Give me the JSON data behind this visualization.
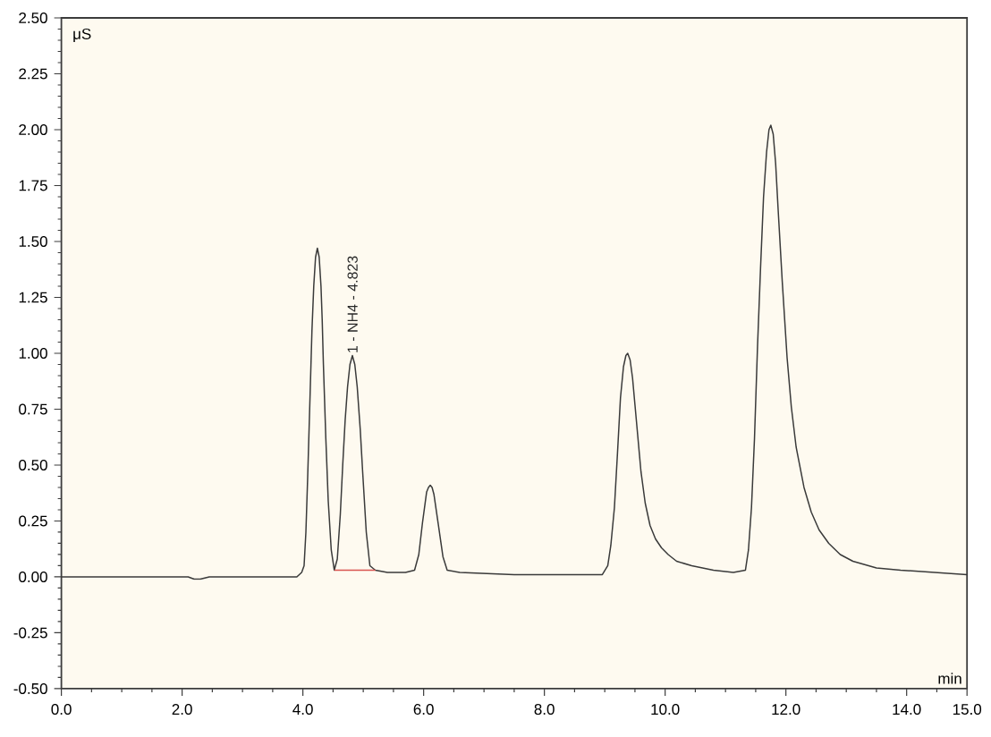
{
  "chart_data": {
    "type": "line",
    "xlabel": "min",
    "ylabel": "μS",
    "xlim": [
      0,
      15
    ],
    "ylim": [
      -0.5,
      2.5
    ],
    "xticks": [
      {
        "value": 0,
        "label": "0.0"
      },
      {
        "value": 0.5,
        "label": null
      },
      {
        "value": 1,
        "label": null
      },
      {
        "value": 1.5,
        "label": null
      },
      {
        "value": 2,
        "label": "2.0"
      },
      {
        "value": 2.5,
        "label": null
      },
      {
        "value": 3,
        "label": null
      },
      {
        "value": 3.5,
        "label": null
      },
      {
        "value": 4,
        "label": "4.0"
      },
      {
        "value": 4.5,
        "label": null
      },
      {
        "value": 5,
        "label": null
      },
      {
        "value": 5.5,
        "label": null
      },
      {
        "value": 6,
        "label": "6.0"
      },
      {
        "value": 6.5,
        "label": null
      },
      {
        "value": 7,
        "label": null
      },
      {
        "value": 7.5,
        "label": null
      },
      {
        "value": 8,
        "label": "8.0"
      },
      {
        "value": 8.5,
        "label": null
      },
      {
        "value": 9,
        "label": null
      },
      {
        "value": 9.5,
        "label": null
      },
      {
        "value": 10,
        "label": "10.0"
      },
      {
        "value": 10.5,
        "label": null
      },
      {
        "value": 11,
        "label": null
      },
      {
        "value": 11.5,
        "label": null
      },
      {
        "value": 12,
        "label": "12.0"
      },
      {
        "value": 12.5,
        "label": null
      },
      {
        "value": 13,
        "label": null
      },
      {
        "value": 13.5,
        "label": null
      },
      {
        "value": 14,
        "label": "14.0"
      },
      {
        "value": 14.5,
        "label": null
      },
      {
        "value": 15,
        "label": "15.0"
      }
    ],
    "yticks": [
      {
        "value": -0.5,
        "label": "-0.50"
      },
      {
        "value": -0.45,
        "label": null
      },
      {
        "value": -0.4,
        "label": null
      },
      {
        "value": -0.35,
        "label": null
      },
      {
        "value": -0.3,
        "label": null
      },
      {
        "value": -0.25,
        "label": "-0.25"
      },
      {
        "value": -0.2,
        "label": null
      },
      {
        "value": -0.15,
        "label": null
      },
      {
        "value": -0.1,
        "label": null
      },
      {
        "value": -0.05,
        "label": null
      },
      {
        "value": 0,
        "label": "0.00"
      },
      {
        "value": 0.05,
        "label": null
      },
      {
        "value": 0.1,
        "label": null
      },
      {
        "value": 0.15,
        "label": null
      },
      {
        "value": 0.2,
        "label": null
      },
      {
        "value": 0.25,
        "label": "0.25"
      },
      {
        "value": 0.3,
        "label": null
      },
      {
        "value": 0.35,
        "label": null
      },
      {
        "value": 0.4,
        "label": null
      },
      {
        "value": 0.45,
        "label": null
      },
      {
        "value": 0.5,
        "label": "0.50"
      },
      {
        "value": 0.55,
        "label": null
      },
      {
        "value": 0.6,
        "label": null
      },
      {
        "value": 0.65,
        "label": null
      },
      {
        "value": 0.7,
        "label": null
      },
      {
        "value": 0.75,
        "label": "0.75"
      },
      {
        "value": 0.8,
        "label": null
      },
      {
        "value": 0.85,
        "label": null
      },
      {
        "value": 0.9,
        "label": null
      },
      {
        "value": 0.95,
        "label": null
      },
      {
        "value": 1,
        "label": "1.00"
      },
      {
        "value": 1.05,
        "label": null
      },
      {
        "value": 1.1,
        "label": null
      },
      {
        "value": 1.15,
        "label": null
      },
      {
        "value": 1.2,
        "label": null
      },
      {
        "value": 1.25,
        "label": "1.25"
      },
      {
        "value": 1.3,
        "label": null
      },
      {
        "value": 1.35,
        "label": null
      },
      {
        "value": 1.4,
        "label": null
      },
      {
        "value": 1.45,
        "label": null
      },
      {
        "value": 1.5,
        "label": "1.50"
      },
      {
        "value": 1.55,
        "label": null
      },
      {
        "value": 1.6,
        "label": null
      },
      {
        "value": 1.65,
        "label": null
      },
      {
        "value": 1.7,
        "label": null
      },
      {
        "value": 1.75,
        "label": "1.75"
      },
      {
        "value": 1.8,
        "label": null
      },
      {
        "value": 1.85,
        "label": null
      },
      {
        "value": 1.9,
        "label": null
      },
      {
        "value": 1.95,
        "label": null
      },
      {
        "value": 2,
        "label": "2.00"
      },
      {
        "value": 2.05,
        "label": null
      },
      {
        "value": 2.1,
        "label": null
      },
      {
        "value": 2.15,
        "label": null
      },
      {
        "value": 2.2,
        "label": null
      },
      {
        "value": 2.25,
        "label": "2.25"
      },
      {
        "value": 2.3,
        "label": null
      },
      {
        "value": 2.35,
        "label": null
      },
      {
        "value": 2.4,
        "label": null
      },
      {
        "value": 2.45,
        "label": null
      },
      {
        "value": 2.5,
        "label": "2.50"
      }
    ],
    "series": [
      {
        "color": "#3a3a3a",
        "x": [
          0,
          2.1,
          2.2,
          2.3,
          2.45,
          3.9,
          3.98,
          4.02,
          4.05,
          4.08,
          4.12,
          4.15,
          4.18,
          4.21,
          4.24,
          4.27,
          4.3,
          4.32,
          4.34,
          4.38,
          4.42,
          4.47,
          4.52,
          4.57,
          4.62,
          4.66,
          4.7,
          4.74,
          4.78,
          4.82,
          4.86,
          4.9,
          4.95,
          4.99,
          5.05,
          5.11,
          5.2,
          5.4,
          5.7,
          5.85,
          5.92,
          5.98,
          6.05,
          6.08,
          6.11,
          6.14,
          6.17,
          6.24,
          6.32,
          6.39,
          6.6,
          7.5,
          8.5,
          8.96,
          9.05,
          9.1,
          9.16,
          9.21,
          9.26,
          9.31,
          9.35,
          9.38,
          9.42,
          9.46,
          9.5,
          9.55,
          9.6,
          9.67,
          9.75,
          9.84,
          9.94,
          10.05,
          10.19,
          10.44,
          10.8,
          11.13,
          11.33,
          11.38,
          11.43,
          11.48,
          11.53,
          11.58,
          11.63,
          11.68,
          11.72,
          11.75,
          11.79,
          11.83,
          11.87,
          11.94,
          12.02,
          12.09,
          12.17,
          12.3,
          12.42,
          12.55,
          12.71,
          12.9,
          13.11,
          13.5,
          13.9,
          15
        ],
        "values": [
          0,
          0,
          -0.01,
          -0.01,
          0,
          0,
          0.02,
          0.05,
          0.2,
          0.45,
          0.82,
          1.1,
          1.3,
          1.43,
          1.47,
          1.43,
          1.3,
          1.15,
          0.95,
          0.62,
          0.34,
          0.12,
          0.03,
          0.08,
          0.28,
          0.5,
          0.7,
          0.85,
          0.95,
          0.99,
          0.95,
          0.85,
          0.66,
          0.47,
          0.2,
          0.05,
          0.03,
          0.02,
          0.02,
          0.03,
          0.1,
          0.24,
          0.38,
          0.4,
          0.41,
          0.4,
          0.37,
          0.24,
          0.09,
          0.03,
          0.02,
          0.01,
          0.01,
          0.01,
          0.05,
          0.14,
          0.31,
          0.55,
          0.8,
          0.94,
          0.99,
          1.0,
          0.97,
          0.89,
          0.77,
          0.62,
          0.47,
          0.33,
          0.23,
          0.17,
          0.13,
          0.1,
          0.07,
          0.05,
          0.03,
          0.02,
          0.03,
          0.12,
          0.31,
          0.62,
          1.03,
          1.38,
          1.7,
          1.9,
          2.0,
          2.02,
          1.98,
          1.85,
          1.65,
          1.32,
          0.98,
          0.76,
          0.58,
          0.4,
          0.29,
          0.21,
          0.15,
          0.1,
          0.07,
          0.04,
          0.03,
          0.01
        ]
      },
      {
        "color": "#d9534f",
        "x": [
          4.53,
          5.19
        ],
        "values": [
          0.03,
          0.03
        ]
      }
    ],
    "annotations": [
      {
        "text": "1 - NH4 - 4.823",
        "x": 4.823,
        "y": 0.99
      }
    ]
  }
}
